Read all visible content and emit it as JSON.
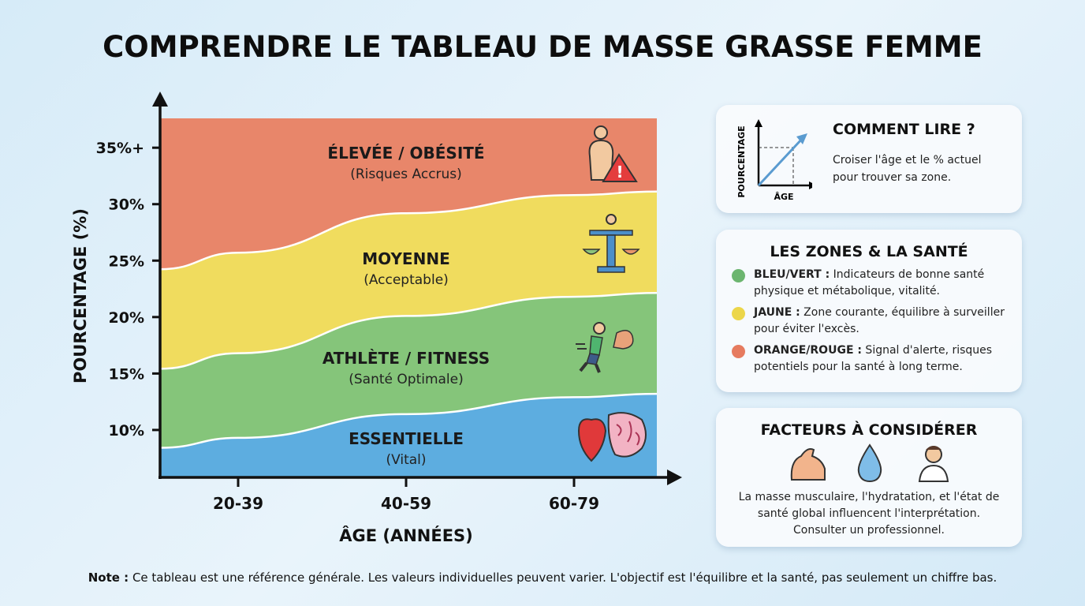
{
  "title": "COMPRENDRE LE TABLEAU DE MASSE GRASSE FEMME",
  "chart_data": {
    "type": "area",
    "xlabel": "ÂGE (ANNÉES)",
    "ylabel": "POURCENTAGE (%)",
    "categories": [
      "20-39",
      "40-59",
      "60-79"
    ],
    "y_ticks": [
      {
        "value": 10,
        "label": "10%"
      },
      {
        "value": 15,
        "label": "15%"
      },
      {
        "value": 20,
        "label": "20%"
      },
      {
        "value": 25,
        "label": "25%"
      },
      {
        "value": 30,
        "label": "30%"
      },
      {
        "value": 35,
        "label": "35%+"
      }
    ],
    "ylim": [
      5.8,
      37.6
    ],
    "zones": [
      {
        "name": "ESSENTIELLE",
        "sub": "(Vital)",
        "color": "#5dade0",
        "upper": [
          9.3,
          11.4,
          12.9
        ],
        "icon": "heart-brain-icon"
      },
      {
        "name": "ATHLÈTE / FITNESS",
        "sub": "(Santé Optimale)",
        "color": "#85c57a",
        "upper": [
          16.8,
          20.1,
          21.8
        ],
        "icon": "runner-icon"
      },
      {
        "name": "MOYENNE",
        "sub": "(Acceptable)",
        "color": "#f0dc5e",
        "upper": [
          25.7,
          29.2,
          30.8
        ],
        "icon": "balance-scale-icon"
      },
      {
        "name": "ÉLEVÉE / OBÉSITÉ",
        "sub": "(Risques Accrus)",
        "color": "#e8866a",
        "upper": [
          37.6,
          37.6,
          37.6
        ],
        "icon": "warning-person-icon"
      }
    ]
  },
  "how_to_read": {
    "title": "COMMENT LIRE ?",
    "text1": "Croiser l'âge et le % actuel",
    "text2": "pour trouver sa zone.",
    "mini_y": "POURCENTAGE",
    "mini_x": "ÂGE"
  },
  "zones_health": {
    "title": "LES ZONES & LA SANTÉ",
    "items": [
      {
        "label": "BLEU/VERT :",
        "text": " Indicateurs de bonne santé physique et métabolique, vitalité.",
        "color": "#6cb56f"
      },
      {
        "label": "JAUNE :",
        "text": " Zone courante, équilibre à surveiller pour éviter l'excès.",
        "color": "#ecd64a"
      },
      {
        "label": "ORANGE/ROUGE :",
        "text": " Signal d'alerte, risques potentiels pour la santé à long terme.",
        "color": "#e67b5f"
      }
    ]
  },
  "factors": {
    "title": "FACTEURS À CONSIDÉRER",
    "icons": [
      "muscle-icon",
      "water-drop-icon",
      "doctor-icon"
    ],
    "text": "La masse musculaire, l'hydratation, et l'état de santé global influencent l'interprétation. Consulter un professionnel."
  },
  "note": {
    "label": "Note :",
    "text": " Ce tableau est une référence générale. Les valeurs individuelles peuvent varier. L'objectif est l'équilibre et la santé, pas seulement un chiffre bas."
  }
}
